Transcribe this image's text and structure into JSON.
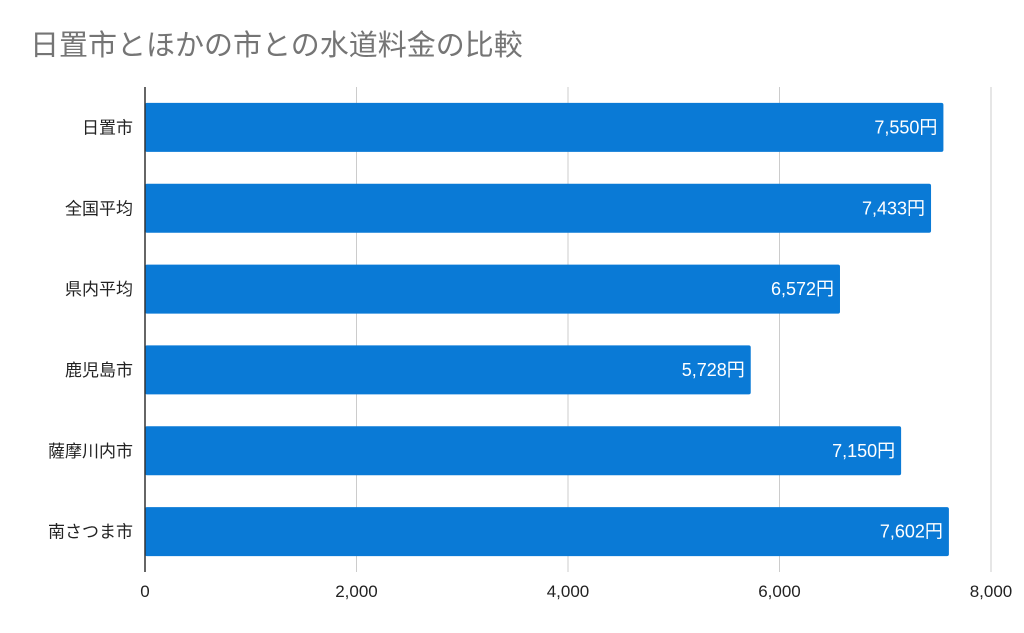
{
  "chart_data": {
    "type": "bar",
    "orientation": "horizontal",
    "title": "日置市とほかの市との水道料金の比較",
    "categories": [
      "日置市",
      "全国平均",
      "県内平均",
      "鹿児島市",
      "薩摩川内市",
      "南さつま市"
    ],
    "values": [
      7550,
      7433,
      6572,
      5728,
      7150,
      7602
    ],
    "data_labels": [
      "7,550円",
      "7,433円",
      "6,572円",
      "5,728円",
      "7,150円",
      "7,602円"
    ],
    "x_ticks": [
      "0",
      "2,000",
      "4,000",
      "6,000",
      "8,000"
    ],
    "xlim": [
      0,
      8000
    ],
    "xlabel": "",
    "ylabel": "",
    "grid": true,
    "bar_color": "#0a7ad6"
  }
}
